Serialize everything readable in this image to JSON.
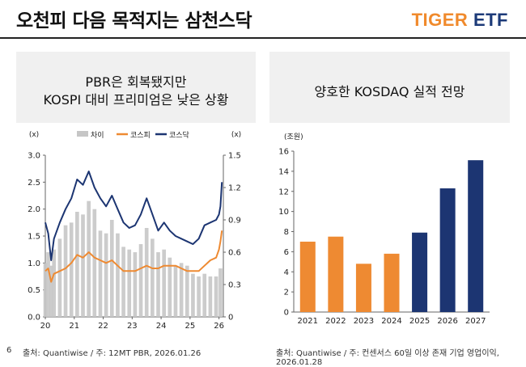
{
  "page": {
    "title": "오천피 다음 목적지는 삼천스닥",
    "logo_part1": "TIGER",
    "logo_part2": "ETF",
    "page_number": "6"
  },
  "left_panel": {
    "title_line1": "PBR은 회복됐지만",
    "title_line2": "KOSPI 대비 프리미엄은 낮은 상황",
    "source": "출처: Quantiwise / 주: 12MT PBR, 2026.01.26"
  },
  "right_panel": {
    "title": "양호한 KOSDAQ 실적 전망",
    "source": "출처: Quantiwise / 주: 컨센서스 60일 이상 존재 기업 영업이익, 2026.01.28"
  },
  "colors": {
    "gap": "#c6c6c6",
    "kospi": "#ee8a32",
    "kosdaq": "#1c3572",
    "orange_bar": "#ee8a32",
    "navy_bar": "#1c3572"
  },
  "chart_data": [
    {
      "type": "line",
      "title": "PBR은 회복됐지만 KOSPI 대비 프리미엄은 낮은 상황",
      "left_axis_unit": "(x)",
      "right_axis_unit": "(x)",
      "x_ticks": [
        "20",
        "21",
        "22",
        "23",
        "24",
        "25",
        "26"
      ],
      "y_left_ticks": [
        "0.0",
        "0.5",
        "1.0",
        "1.5",
        "2.0",
        "2.5",
        "3.0"
      ],
      "y_right_ticks": [
        "0",
        "0.3",
        "0.6",
        "0.9",
        "1.2",
        "1.5"
      ],
      "ylim_left": [
        0,
        3.0
      ],
      "ylim_right": [
        0,
        1.5
      ],
      "xlim": [
        2020.0,
        2026.15
      ],
      "legend": [
        "차이",
        "코스피",
        "코스닥"
      ],
      "series": [
        {
          "name": "차이",
          "axis": "left",
          "style": "bars",
          "x": [
            2020.0,
            2020.1,
            2020.2,
            2020.3,
            2020.5,
            2020.7,
            2020.9,
            2021.1,
            2021.3,
            2021.5,
            2021.7,
            2021.9,
            2022.1,
            2022.3,
            2022.5,
            2022.7,
            2022.9,
            2023.1,
            2023.3,
            2023.5,
            2023.7,
            2023.9,
            2024.1,
            2024.3,
            2024.5,
            2024.7,
            2024.9,
            2025.1,
            2025.3,
            2025.5,
            2025.7,
            2025.9,
            2026.05
          ],
          "values": [
            1.0,
            1.2,
            0.95,
            1.25,
            1.45,
            1.7,
            1.75,
            1.95,
            1.9,
            2.15,
            2.0,
            1.6,
            1.55,
            1.8,
            1.55,
            1.3,
            1.25,
            1.2,
            1.35,
            1.65,
            1.45,
            1.2,
            1.25,
            1.1,
            0.95,
            1.0,
            0.95,
            0.8,
            0.75,
            0.8,
            0.75,
            0.75,
            0.9
          ]
        },
        {
          "name": "코스피",
          "axis": "left",
          "x": [
            2020.0,
            2020.1,
            2020.2,
            2020.3,
            2020.5,
            2020.7,
            2020.9,
            2021.1,
            2021.3,
            2021.5,
            2021.7,
            2021.9,
            2022.1,
            2022.3,
            2022.5,
            2022.7,
            2022.9,
            2023.1,
            2023.3,
            2023.5,
            2023.7,
            2023.9,
            2024.1,
            2024.3,
            2024.5,
            2024.7,
            2024.9,
            2025.1,
            2025.3,
            2025.5,
            2025.7,
            2025.9,
            2026.0,
            2026.05,
            2026.1
          ],
          "values": [
            0.85,
            0.9,
            0.65,
            0.8,
            0.85,
            0.9,
            1.0,
            1.15,
            1.1,
            1.2,
            1.1,
            1.05,
            1.0,
            1.05,
            0.95,
            0.85,
            0.85,
            0.85,
            0.9,
            0.95,
            0.9,
            0.9,
            0.95,
            0.95,
            0.95,
            0.9,
            0.85,
            0.85,
            0.85,
            0.95,
            1.05,
            1.1,
            1.25,
            1.4,
            1.6
          ]
        },
        {
          "name": "코스닥",
          "axis": "left",
          "x": [
            2020.0,
            2020.1,
            2020.2,
            2020.3,
            2020.5,
            2020.7,
            2020.9,
            2021.1,
            2021.3,
            2021.5,
            2021.7,
            2021.9,
            2022.1,
            2022.3,
            2022.5,
            2022.7,
            2022.9,
            2023.1,
            2023.3,
            2023.5,
            2023.7,
            2023.9,
            2024.1,
            2024.3,
            2024.5,
            2024.7,
            2024.9,
            2025.1,
            2025.3,
            2025.5,
            2025.7,
            2025.9,
            2026.0,
            2026.05,
            2026.1
          ],
          "values": [
            1.75,
            1.55,
            1.05,
            1.45,
            1.75,
            2.0,
            2.2,
            2.55,
            2.45,
            2.7,
            2.4,
            2.2,
            2.05,
            2.25,
            2.0,
            1.75,
            1.65,
            1.7,
            1.9,
            2.2,
            1.9,
            1.6,
            1.75,
            1.6,
            1.5,
            1.45,
            1.4,
            1.35,
            1.45,
            1.7,
            1.75,
            1.8,
            1.9,
            2.05,
            2.5
          ]
        }
      ]
    },
    {
      "type": "bar",
      "title": "양호한 KOSDAQ 실적 전망",
      "y_unit": "(조원)",
      "categories": [
        "2021",
        "2022",
        "2023",
        "2024",
        "2025",
        "2026",
        "2027"
      ],
      "values": [
        7.0,
        7.5,
        4.8,
        5.8,
        7.9,
        12.3,
        15.1
      ],
      "bar_colors": [
        "orange",
        "orange",
        "orange",
        "orange",
        "navy",
        "navy",
        "navy"
      ],
      "y_ticks": [
        "0",
        "2",
        "4",
        "6",
        "8",
        "10",
        "12",
        "14",
        "16"
      ],
      "ylim": [
        0,
        16
      ]
    }
  ]
}
